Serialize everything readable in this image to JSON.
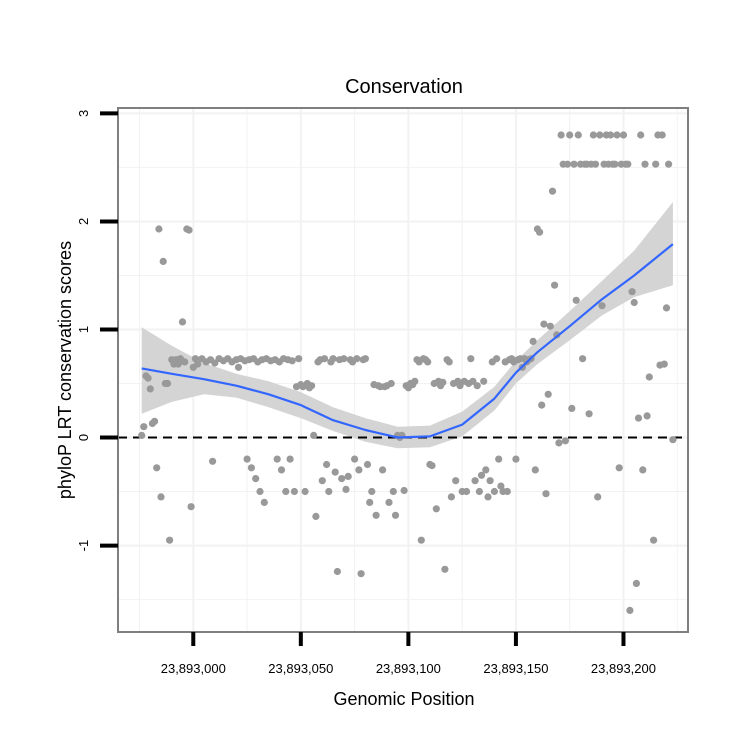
{
  "chart_data": {
    "type": "scatter",
    "title": "Conservation",
    "xlabel": "Genomic Position",
    "ylabel": "phyloP LRT conservation scores",
    "xlim": [
      23892965,
      23893230
    ],
    "ylim": [
      -1.8,
      3.05
    ],
    "x_ticks": [
      23893000,
      23893050,
      23893100,
      23893150,
      23893200
    ],
    "x_tick_labels": [
      "23,893,000",
      "23,893,050",
      "23,893,100",
      "23,893,150",
      "23,893,200"
    ],
    "y_ticks": [
      -1,
      0,
      1,
      2,
      3
    ],
    "y_tick_labels": [
      "-1",
      "0",
      "1",
      "2",
      "3"
    ],
    "grid": true,
    "reference_line": {
      "y": 0,
      "style": "dashed"
    },
    "colors": {
      "points": "#999999",
      "smooth": "#3366FF",
      "ribbon": "#d4d4d4",
      "panel_border": "#7f7f7f",
      "grid": "#f2f2f2"
    },
    "points": [
      [
        23892976,
        0.02
      ],
      [
        23892977,
        0.1
      ],
      [
        23892978,
        0.57
      ],
      [
        23892979,
        0.55
      ],
      [
        23892980,
        0.45
      ],
      [
        23892981,
        0.13
      ],
      [
        23892982,
        0.15
      ],
      [
        23892983,
        -0.28
      ],
      [
        23892984,
        1.93
      ],
      [
        23892985,
        -0.55
      ],
      [
        23892986,
        1.63
      ],
      [
        23892987,
        0.5
      ],
      [
        23892988,
        0.5
      ],
      [
        23892989,
        -0.95
      ],
      [
        23892990,
        0.72
      ],
      [
        23892991,
        0.68
      ],
      [
        23892992,
        0.72
      ],
      [
        23892993,
        0.68
      ],
      [
        23892994,
        0.73
      ],
      [
        23892995,
        1.07
      ],
      [
        23892996,
        0.7
      ],
      [
        23892997,
        1.93
      ],
      [
        23892998,
        1.92
      ],
      [
        23892999,
        -0.64
      ],
      [
        23893000,
        0.65
      ],
      [
        23893001,
        0.73
      ],
      [
        23893002,
        0.68
      ],
      [
        23893004,
        0.73
      ],
      [
        23893006,
        0.7
      ],
      [
        23893008,
        0.72
      ],
      [
        23893009,
        -0.22
      ],
      [
        23893010,
        0.69
      ],
      [
        23893012,
        0.73
      ],
      [
        23893014,
        0.71
      ],
      [
        23893016,
        0.73
      ],
      [
        23893018,
        0.7
      ],
      [
        23893020,
        0.72
      ],
      [
        23893021,
        0.65
      ],
      [
        23893022,
        0.73
      ],
      [
        23893024,
        0.71
      ],
      [
        23893025,
        -0.2
      ],
      [
        23893026,
        0.72
      ],
      [
        23893027,
        -0.28
      ],
      [
        23893028,
        0.73
      ],
      [
        23893029,
        -0.38
      ],
      [
        23893030,
        0.7
      ],
      [
        23893031,
        -0.5
      ],
      [
        23893032,
        0.72
      ],
      [
        23893033,
        -0.6
      ],
      [
        23893034,
        0.73
      ],
      [
        23893036,
        0.71
      ],
      [
        23893038,
        0.72
      ],
      [
        23893039,
        -0.2
      ],
      [
        23893040,
        0.7
      ],
      [
        23893041,
        -0.3
      ],
      [
        23893042,
        0.73
      ],
      [
        23893043,
        -0.5
      ],
      [
        23893044,
        0.72
      ],
      [
        23893045,
        -0.2
      ],
      [
        23893046,
        0.71
      ],
      [
        23893047,
        -0.5
      ],
      [
        23893048,
        0.47
      ],
      [
        23893049,
        0.73
      ],
      [
        23893050,
        0.49
      ],
      [
        23893051,
        0.47
      ],
      [
        23893052,
        -0.5
      ],
      [
        23893053,
        0.5
      ],
      [
        23893054,
        0.46
      ],
      [
        23893055,
        0.48
      ],
      [
        23893056,
        0.02
      ],
      [
        23893057,
        -0.73
      ],
      [
        23893058,
        0.7
      ],
      [
        23893059,
        0.72
      ],
      [
        23893060,
        -0.4
      ],
      [
        23893061,
        0.73
      ],
      [
        23893062,
        -0.25
      ],
      [
        23893063,
        -0.5
      ],
      [
        23893064,
        0.7
      ],
      [
        23893065,
        0.73
      ],
      [
        23893066,
        -0.32
      ],
      [
        23893067,
        -1.24
      ],
      [
        23893068,
        0.72
      ],
      [
        23893069,
        -0.38
      ],
      [
        23893070,
        0.73
      ],
      [
        23893071,
        -0.48
      ],
      [
        23893072,
        -0.36
      ],
      [
        23893073,
        0.72
      ],
      [
        23893074,
        0.7
      ],
      [
        23893075,
        -0.2
      ],
      [
        23893076,
        0.73
      ],
      [
        23893077,
        -0.3
      ],
      [
        23893078,
        -1.26
      ],
      [
        23893079,
        0.72
      ],
      [
        23893080,
        0.73
      ],
      [
        23893081,
        -0.25
      ],
      [
        23893082,
        -0.6
      ],
      [
        23893083,
        -0.5
      ],
      [
        23893084,
        0.49
      ],
      [
        23893085,
        -0.72
      ],
      [
        23893086,
        0.48
      ],
      [
        23893087,
        0.47
      ],
      [
        23893088,
        -0.3
      ],
      [
        23893089,
        0.47
      ],
      [
        23893090,
        0.48
      ],
      [
        23893091,
        -0.6
      ],
      [
        23893092,
        0.5
      ],
      [
        23893093,
        -0.5
      ],
      [
        23893094,
        -0.72
      ],
      [
        23893095,
        0.02
      ],
      [
        23893096,
        0.0
      ],
      [
        23893097,
        0.02
      ],
      [
        23893098,
        -0.49
      ],
      [
        23893099,
        0.48
      ],
      [
        23893100,
        0.46
      ],
      [
        23893101,
        0.5
      ],
      [
        23893102,
        0.49
      ],
      [
        23893103,
        0.52
      ],
      [
        23893104,
        0.72
      ],
      [
        23893105,
        0.7
      ],
      [
        23893106,
        -0.95
      ],
      [
        23893107,
        0.73
      ],
      [
        23893108,
        0.72
      ],
      [
        23893109,
        0.7
      ],
      [
        23893110,
        -0.25
      ],
      [
        23893111,
        -0.26
      ],
      [
        23893112,
        0.5
      ],
      [
        23893113,
        -0.66
      ],
      [
        23893114,
        0.52
      ],
      [
        23893115,
        0.48
      ],
      [
        23893116,
        0.51
      ],
      [
        23893117,
        -1.22
      ],
      [
        23893118,
        0.72
      ],
      [
        23893119,
        0.7
      ],
      [
        23893120,
        -0.55
      ],
      [
        23893121,
        0.5
      ],
      [
        23893122,
        -0.4
      ],
      [
        23893123,
        0.52
      ],
      [
        23893124,
        0.48
      ],
      [
        23893125,
        -0.5
      ],
      [
        23893126,
        0.52
      ],
      [
        23893127,
        -0.5
      ],
      [
        23893128,
        0.5
      ],
      [
        23893129,
        0.73
      ],
      [
        23893130,
        0.52
      ],
      [
        23893131,
        -0.4
      ],
      [
        23893132,
        0.48
      ],
      [
        23893133,
        -0.5
      ],
      [
        23893134,
        -0.35
      ],
      [
        23893135,
        0.52
      ],
      [
        23893136,
        -0.3
      ],
      [
        23893137,
        -0.55
      ],
      [
        23893138,
        -0.4
      ],
      [
        23893139,
        0.7
      ],
      [
        23893140,
        -0.5
      ],
      [
        23893141,
        0.73
      ],
      [
        23893142,
        -0.2
      ],
      [
        23893143,
        -0.45
      ],
      [
        23893144,
        -0.5
      ],
      [
        23893145,
        0.7
      ],
      [
        23893146,
        -0.5
      ],
      [
        23893147,
        0.72
      ],
      [
        23893148,
        0.73
      ],
      [
        23893149,
        0.7
      ],
      [
        23893150,
        -0.2
      ],
      [
        23893151,
        0.72
      ],
      [
        23893152,
        0.73
      ],
      [
        23893153,
        0.65
      ],
      [
        23893154,
        0.73
      ],
      [
        23893155,
        0.7
      ],
      [
        23893156,
        0.72
      ],
      [
        23893157,
        0.73
      ],
      [
        23893158,
        0.89
      ],
      [
        23893159,
        -0.3
      ],
      [
        23893160,
        1.93
      ],
      [
        23893161,
        1.9
      ],
      [
        23893162,
        0.3
      ],
      [
        23893163,
        1.05
      ],
      [
        23893164,
        -0.52
      ],
      [
        23893165,
        0.4
      ],
      [
        23893166,
        1.03
      ],
      [
        23893167,
        2.28
      ],
      [
        23893168,
        1.41
      ],
      [
        23893169,
        0.95
      ],
      [
        23893170,
        -0.05
      ],
      [
        23893171,
        2.8
      ],
      [
        23893172,
        2.53
      ],
      [
        23893173,
        -0.03
      ],
      [
        23893174,
        2.53
      ],
      [
        23893175,
        2.8
      ],
      [
        23893176,
        0.27
      ],
      [
        23893177,
        2.53
      ],
      [
        23893178,
        1.27
      ],
      [
        23893179,
        2.8
      ],
      [
        23893180,
        2.53
      ],
      [
        23893181,
        0.73
      ],
      [
        23893182,
        2.53
      ],
      [
        23893183,
        2.53
      ],
      [
        23893184,
        0.22
      ],
      [
        23893185,
        2.53
      ],
      [
        23893186,
        2.8
      ],
      [
        23893187,
        2.53
      ],
      [
        23893188,
        -0.55
      ],
      [
        23893189,
        2.8
      ],
      [
        23893190,
        1.22
      ],
      [
        23893191,
        2.53
      ],
      [
        23893192,
        2.8
      ],
      [
        23893193,
        2.53
      ],
      [
        23893194,
        2.8
      ],
      [
        23893195,
        2.53
      ],
      [
        23893196,
        2.53
      ],
      [
        23893197,
        2.8
      ],
      [
        23893198,
        -0.28
      ],
      [
        23893199,
        2.53
      ],
      [
        23893200,
        2.8
      ],
      [
        23893201,
        2.53
      ],
      [
        23893202,
        2.53
      ],
      [
        23893203,
        -1.6
      ],
      [
        23893204,
        1.35
      ],
      [
        23893205,
        1.25
      ],
      [
        23893206,
        -1.35
      ],
      [
        23893207,
        0.18
      ],
      [
        23893208,
        2.8
      ],
      [
        23893209,
        -0.3
      ],
      [
        23893210,
        2.53
      ],
      [
        23893211,
        0.2
      ],
      [
        23893212,
        0.56
      ],
      [
        23893214,
        -0.95
      ],
      [
        23893215,
        2.53
      ],
      [
        23893216,
        2.8
      ],
      [
        23893217,
        0.67
      ],
      [
        23893218,
        2.8
      ],
      [
        23893219,
        0.68
      ],
      [
        23893220,
        1.2
      ],
      [
        23893221,
        2.53
      ],
      [
        23893223,
        -0.02
      ]
    ],
    "smooth_line": {
      "x": [
        23892976,
        23892990,
        23893005,
        23893020,
        23893035,
        23893050,
        23893065,
        23893080,
        23893095,
        23893110,
        23893125,
        23893140,
        23893150,
        23893160,
        23893175,
        23893190,
        23893205,
        23893223
      ],
      "y": [
        0.64,
        0.59,
        0.54,
        0.48,
        0.4,
        0.3,
        0.16,
        0.07,
        0.0,
        0.01,
        0.12,
        0.36,
        0.6,
        0.79,
        1.03,
        1.28,
        1.5,
        1.79
      ],
      "lower": [
        0.22,
        0.33,
        0.4,
        0.37,
        0.28,
        0.18,
        0.06,
        -0.04,
        -0.1,
        -0.09,
        0.01,
        0.25,
        0.5,
        0.68,
        0.9,
        1.13,
        1.3,
        1.41
      ],
      "upper": [
        1.02,
        0.85,
        0.69,
        0.59,
        0.52,
        0.42,
        0.28,
        0.18,
        0.1,
        0.11,
        0.24,
        0.47,
        0.71,
        0.9,
        1.17,
        1.45,
        1.73,
        2.18
      ]
    }
  }
}
